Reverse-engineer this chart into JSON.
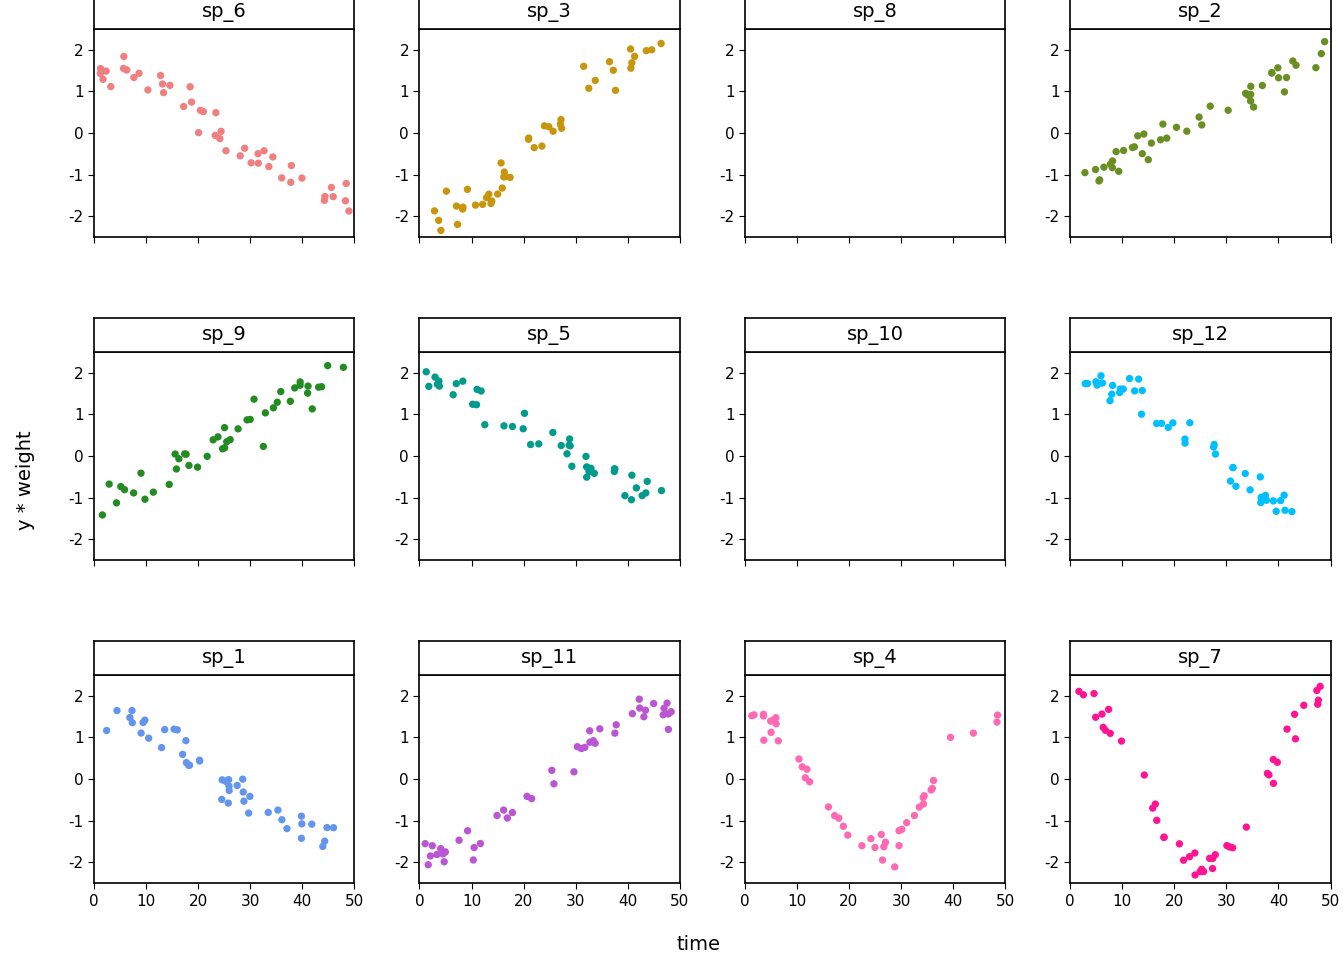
{
  "panel_order": [
    "sp_6",
    "sp_3",
    "sp_8",
    "sp_2",
    "sp_9",
    "sp_5",
    "sp_10",
    "sp_12",
    "sp_1",
    "sp_11",
    "sp_4",
    "sp_7"
  ],
  "panel_colors": {
    "sp_6": "#F08080",
    "sp_3": "#C8960C",
    "sp_8": null,
    "sp_2": "#6B8E23",
    "sp_9": "#228B22",
    "sp_5": "#009B8D",
    "sp_10": null,
    "sp_12": "#00BFFF",
    "sp_1": "#6495ED",
    "sp_11": "#BA55D3",
    "sp_4": "#FF69B4",
    "sp_7": "#FF1493"
  },
  "xlabel": "time",
  "ylabel": "y * weight",
  "xlim": [
    0,
    50
  ],
  "ylim_default": [
    -2.5,
    2.5
  ],
  "xticks": [
    0,
    10,
    20,
    30,
    40,
    50
  ],
  "yticks": [
    -2,
    -1,
    0,
    1,
    2
  ],
  "n_points": 45,
  "point_size": 28,
  "title_fontsize": 14,
  "axis_fontsize": 11,
  "label_fontsize": 14,
  "background": "#FFFFFF",
  "strip_height_ratio": 0.13
}
